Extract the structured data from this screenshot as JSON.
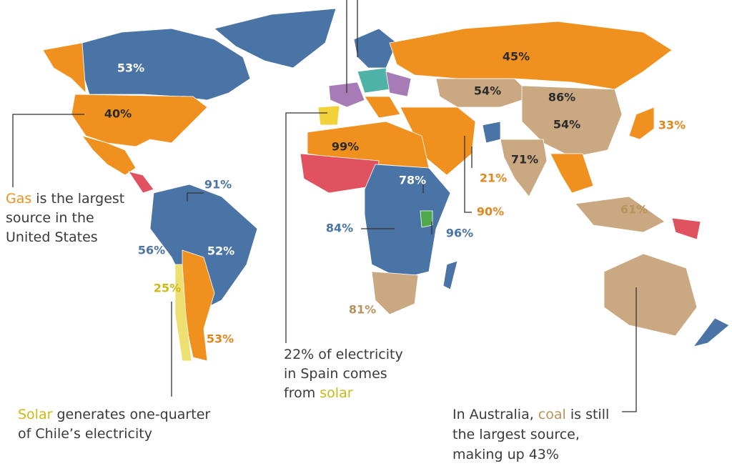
{
  "labels": [
    {
      "text": "53%",
      "color": "#ffffff"
    },
    {
      "text": "40%",
      "color": "#2b2b2b"
    },
    {
      "text": "45%",
      "color": "#2b2b2b"
    },
    {
      "text": "54%",
      "color": "#2b2b2b"
    },
    {
      "text": "86%",
      "color": "#2b2b2b"
    },
    {
      "text": "54%",
      "color": "#2b2b2b"
    },
    {
      "text": "33%",
      "color": "#e0861c"
    },
    {
      "text": "99%",
      "color": "#2b2b2b"
    },
    {
      "text": "21%",
      "color": "#e0861c"
    },
    {
      "text": "71%",
      "color": "#2b2b2b"
    },
    {
      "text": "91%",
      "color": "#4a74a5"
    },
    {
      "text": "78%",
      "color": "#ffffff"
    },
    {
      "text": "90%",
      "color": "#e0861c"
    },
    {
      "text": "61%",
      "color": "#b8935a"
    },
    {
      "text": "84%",
      "color": "#4a74a5"
    },
    {
      "text": "96%",
      "color": "#4a74a5"
    },
    {
      "text": "56%",
      "color": "#4a74a5"
    },
    {
      "text": "52%",
      "color": "#ffffff"
    },
    {
      "text": "25%",
      "color": "#cdb815"
    },
    {
      "text": "53%",
      "color": "#e0861c"
    },
    {
      "text": "81%",
      "color": "#b8935a"
    }
  ],
  "annotations": [
    {
      "lines": [
        [
          {
            "text": "Gas",
            "color": "#f0901e"
          },
          {
            "text": " is the largest"
          }
        ],
        [
          {
            "text": "source in the"
          }
        ],
        [
          {
            "text": "United States"
          }
        ]
      ]
    },
    {
      "lines": [
        [
          {
            "text": "22% of electricity"
          }
        ],
        [
          {
            "text": "in Spain comes"
          }
        ],
        [
          {
            "text": "from "
          },
          {
            "text": "solar",
            "color": "#cdb815"
          }
        ]
      ]
    },
    {
      "lines": [
        [
          {
            "text": "Solar",
            "color": "#cdb815"
          },
          {
            "text": " generates one-quarter"
          }
        ],
        [
          {
            "text": "of Chile’s electricity"
          }
        ]
      ]
    },
    {
      "lines": [
        [
          {
            "text": "In Australia, "
          },
          {
            "text": "coal",
            "color": "#b8935a"
          },
          {
            "text": " is still"
          }
        ],
        [
          {
            "text": "the largest source,"
          }
        ],
        [
          {
            "text": "making up 43%"
          }
        ]
      ]
    }
  ]
}
